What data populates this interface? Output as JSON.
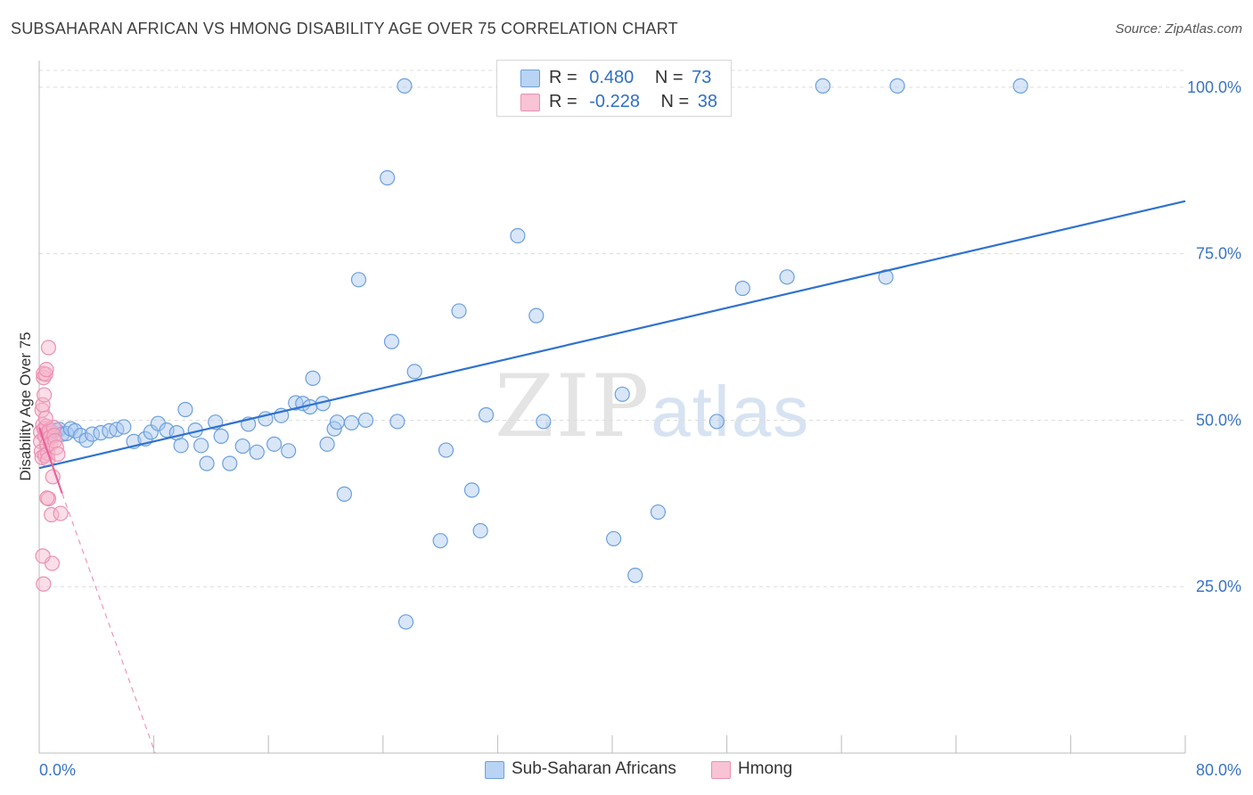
{
  "title": "SUBSAHARAN AFRICAN VS HMONG DISABILITY AGE OVER 75 CORRELATION CHART",
  "source": "Source: ZipAtlas.com",
  "watermark": {
    "zip": "ZIP",
    "atlas": "atlas"
  },
  "legend": [
    {
      "r_label": "R =",
      "r_value": "0.480",
      "n_label": "N =",
      "n_value": "73"
    },
    {
      "r_label": "R =",
      "r_value": "-0.228",
      "n_label": "N =",
      "n_value": "38"
    }
  ],
  "bottom_legend": {
    "series_a": "Sub-Saharan Africans",
    "series_b": "Hmong"
  },
  "colors": {
    "blue": "#2f72d0",
    "blue_fill": "#a9c8f0",
    "pink": "#e8649a",
    "pink_fill": "#f6b6cb",
    "tick_text": "#3a73c2"
  },
  "chart_data": {
    "type": "scatter",
    "title": "SUBSAHARAN AFRICAN VS HMONG DISABILITY AGE OVER 75 CORRELATION CHART",
    "xlabel": "",
    "ylabel": "Disability Age Over 75",
    "xlim": [
      0,
      80
    ],
    "ylim": [
      0,
      104
    ],
    "x_tick_labels": [
      "0.0%",
      "80.0%"
    ],
    "y_ticks": [
      25,
      50,
      75,
      100
    ],
    "y_tick_labels": [
      "25.0%",
      "50.0%",
      "75.0%",
      "100.0%"
    ],
    "grid": true,
    "legend_position": "top-center",
    "series": [
      {
        "name": "Sub-Saharan Africans",
        "r": 0.48,
        "n": 73,
        "trend": {
          "x": [
            0,
            80
          ],
          "y": [
            42.8,
            82.9
          ]
        },
        "points": [
          [
            0.9,
            48.2
          ],
          [
            1.2,
            48.5
          ],
          [
            1.4,
            48.6
          ],
          [
            1.6,
            47.9
          ],
          [
            1.9,
            48.0
          ],
          [
            2.2,
            48.7
          ],
          [
            2.5,
            48.4
          ],
          [
            2.9,
            47.7
          ],
          [
            3.3,
            47.0
          ],
          [
            3.7,
            47.9
          ],
          [
            4.3,
            48.1
          ],
          [
            4.9,
            48.4
          ],
          [
            5.4,
            48.6
          ],
          [
            5.9,
            49.0
          ],
          [
            6.6,
            46.8
          ],
          [
            7.4,
            47.2
          ],
          [
            7.8,
            48.2
          ],
          [
            8.3,
            49.5
          ],
          [
            8.9,
            48.5
          ],
          [
            9.6,
            48.1
          ],
          [
            9.9,
            46.2
          ],
          [
            10.2,
            51.6
          ],
          [
            10.9,
            48.5
          ],
          [
            11.3,
            46.2
          ],
          [
            11.7,
            43.5
          ],
          [
            12.3,
            49.7
          ],
          [
            12.7,
            47.6
          ],
          [
            13.3,
            43.5
          ],
          [
            14.2,
            46.1
          ],
          [
            14.6,
            49.4
          ],
          [
            15.2,
            45.2
          ],
          [
            15.8,
            50.2
          ],
          [
            16.4,
            46.4
          ],
          [
            16.9,
            50.7
          ],
          [
            17.4,
            45.4
          ],
          [
            17.9,
            52.6
          ],
          [
            18.4,
            52.5
          ],
          [
            18.9,
            52.0
          ],
          [
            19.1,
            56.3
          ],
          [
            19.8,
            52.5
          ],
          [
            20.1,
            46.4
          ],
          [
            20.6,
            48.7
          ],
          [
            20.8,
            49.7
          ],
          [
            21.3,
            38.9
          ],
          [
            21.8,
            49.6
          ],
          [
            22.3,
            71.1
          ],
          [
            22.8,
            50.0
          ],
          [
            24.3,
            86.4
          ],
          [
            24.6,
            61.8
          ],
          [
            25.0,
            49.8
          ],
          [
            25.5,
            100.2
          ],
          [
            25.6,
            19.7
          ],
          [
            26.2,
            57.3
          ],
          [
            28.0,
            31.9
          ],
          [
            28.4,
            45.5
          ],
          [
            29.3,
            66.4
          ],
          [
            30.2,
            39.5
          ],
          [
            30.8,
            33.4
          ],
          [
            31.2,
            50.8
          ],
          [
            33.4,
            77.7
          ],
          [
            34.7,
            65.7
          ],
          [
            35.2,
            49.8
          ],
          [
            40.1,
            32.2
          ],
          [
            40.7,
            53.9
          ],
          [
            41.6,
            26.7
          ],
          [
            43.2,
            36.2
          ],
          [
            47.3,
            49.8
          ],
          [
            49.1,
            69.8
          ],
          [
            52.2,
            71.5
          ],
          [
            54.7,
            100.2
          ],
          [
            59.1,
            71.5
          ],
          [
            59.9,
            100.2
          ],
          [
            68.5,
            100.2
          ]
        ]
      },
      {
        "name": "Hmong",
        "r": -0.228,
        "n": 38,
        "trend_solid": {
          "x": [
            0,
            1.6
          ],
          "y": [
            48.9,
            39.0
          ]
        },
        "trend_dashed": {
          "x": [
            1.6,
            8.1
          ],
          "y": [
            39.0,
            0
          ]
        },
        "points": [
          [
            0.1,
            48.2
          ],
          [
            0.1,
            46.8
          ],
          [
            0.15,
            45.3
          ],
          [
            0.2,
            44.4
          ],
          [
            0.2,
            51.5
          ],
          [
            0.25,
            52.3
          ],
          [
            0.25,
            49.3
          ],
          [
            0.3,
            56.4
          ],
          [
            0.3,
            57.0
          ],
          [
            0.35,
            53.8
          ],
          [
            0.35,
            48.7
          ],
          [
            0.4,
            47.6
          ],
          [
            0.4,
            44.7
          ],
          [
            0.45,
            56.9
          ],
          [
            0.5,
            57.6
          ],
          [
            0.5,
            49.1
          ],
          [
            0.55,
            48.0
          ],
          [
            0.55,
            46.3
          ],
          [
            0.6,
            45.0
          ],
          [
            0.6,
            44.1
          ],
          [
            0.65,
            60.9
          ],
          [
            0.65,
            38.2
          ],
          [
            0.7,
            48.5
          ],
          [
            0.75,
            47.4
          ],
          [
            0.8,
            46.4
          ],
          [
            0.85,
            35.8
          ],
          [
            0.9,
            28.5
          ],
          [
            0.95,
            41.5
          ],
          [
            1.0,
            48.9
          ],
          [
            1.05,
            47.7
          ],
          [
            1.1,
            46.9
          ],
          [
            1.2,
            45.9
          ],
          [
            1.3,
            44.9
          ],
          [
            0.25,
            29.6
          ],
          [
            0.3,
            25.4
          ],
          [
            1.5,
            36.0
          ],
          [
            0.55,
            38.3
          ],
          [
            0.45,
            50.3
          ]
        ]
      }
    ]
  }
}
